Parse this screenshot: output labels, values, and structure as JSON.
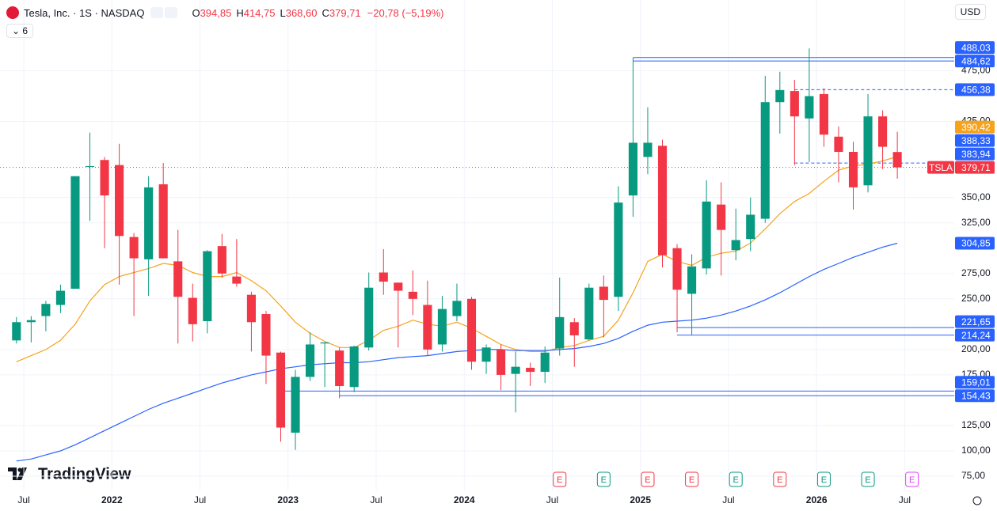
{
  "header": {
    "symbol": "Tesla, Inc. · 1S · NASDAQ",
    "currency": "USD",
    "indicator_count": "6",
    "ohlc": [
      {
        "key": "O",
        "label": "394,85"
      },
      {
        "key": "H",
        "label": "414,75"
      },
      {
        "key": "L",
        "label": "368,60"
      },
      {
        "key": "C",
        "label": "379,71"
      }
    ],
    "change": {
      "value": -20.78,
      "label": "−20,78"
    },
    "change_pct": {
      "value": -5.19,
      "label": "(−5,19%)"
    }
  },
  "logo": "TradingView",
  "chart_data": {
    "type": "candlestick",
    "symbol": "TSLA",
    "last_label": "379,71",
    "up_color": "#089981",
    "down_color": "#f23645",
    "x": [
      "2021-06",
      "2021-07",
      "2021-08",
      "2021-09",
      "2021-10",
      "2021-11",
      "2021-12",
      "2022-01",
      "2022-02",
      "2022-03",
      "2022-04",
      "2022-05",
      "2022-06",
      "2022-07",
      "2022-08",
      "2022-09",
      "2022-10",
      "2022-11",
      "2022-12",
      "2023-01",
      "2023-02",
      "2023-03",
      "2023-04",
      "2023-05",
      "2023-06",
      "2023-07",
      "2023-08",
      "2023-09",
      "2023-10",
      "2023-11",
      "2023-12",
      "2024-01",
      "2024-02",
      "2024-03",
      "2024-04",
      "2024-05",
      "2024-06",
      "2024-07",
      "2024-08",
      "2024-09",
      "2024-10",
      "2024-11",
      "2024-12",
      "2025-01",
      "2025-02",
      "2025-03",
      "2025-04",
      "2025-05",
      "2025-06",
      "2025-07",
      "2025-08",
      "2025-09",
      "2025-10",
      "2025-11",
      "2025-12",
      "2026-01",
      "2026-02",
      "2026-03",
      "2026-04",
      "2026-05",
      "2026-06"
    ],
    "open": [
      209,
      227,
      233,
      244,
      260,
      381,
      387,
      382,
      311,
      289,
      363,
      287,
      251,
      228,
      302,
      272,
      254,
      235,
      197,
      118,
      173,
      206,
      199,
      163,
      202,
      276,
      266,
      257,
      244,
      205,
      233,
      250,
      188,
      200,
      176,
      182,
      178,
      201,
      227,
      210,
      262,
      252,
      352,
      390,
      401,
      300,
      255,
      280,
      343,
      298,
      309,
      329,
      444,
      455,
      428,
      452,
      410,
      395,
      362,
      430,
      394.85
    ],
    "high": [
      232,
      233,
      248,
      264,
      371,
      414,
      390,
      403,
      315,
      371,
      384,
      318,
      265,
      298,
      314,
      309,
      257,
      238,
      198,
      180,
      217,
      207,
      202,
      204,
      276,
      299,
      266,
      278,
      268,
      253,
      265,
      252,
      205,
      205,
      198,
      187,
      203,
      271,
      231,
      265,
      273,
      361,
      488,
      439,
      407,
      304,
      294,
      367,
      365,
      339,
      350,
      470,
      474,
      466,
      497,
      458,
      420,
      405,
      452,
      436,
      414.75
    ],
    "low": [
      206,
      207,
      218,
      236,
      260,
      327,
      300,
      264,
      233,
      253,
      290,
      206,
      208,
      216,
      271,
      262,
      198,
      166,
      109,
      101,
      169,
      163,
      152,
      158,
      199,
      254,
      202,
      234,
      194,
      198,
      228,
      180,
      176,
      160,
      138,
      164,
      167,
      194,
      183,
      209,
      212,
      238,
      331,
      373,
      281,
      217,
      214,
      274,
      273,
      288,
      297,
      325,
      413,
      382,
      385,
      400,
      365,
      338,
      355,
      378,
      368.6
    ],
    "close": [
      227,
      229,
      245,
      258,
      371,
      381,
      352,
      312,
      290,
      360,
      290,
      252,
      225,
      297,
      275,
      265,
      227,
      194,
      123,
      173,
      205,
      207,
      164,
      203,
      261,
      267,
      258,
      250,
      200,
      240,
      248,
      188,
      202,
      175,
      183,
      178,
      197,
      232,
      214,
      261,
      249,
      345,
      404,
      404,
      293,
      259,
      282,
      346,
      318,
      308,
      333,
      444,
      456,
      430,
      450,
      412,
      395,
      360,
      430,
      400,
      379.71
    ],
    "lines": [
      {
        "color": "#f7a21b",
        "last_label": "390,42",
        "values": [
          188,
          194,
          200,
          209,
          225,
          248,
          264,
          272,
          276,
          280,
          285,
          283,
          276,
          272,
          272,
          276,
          268,
          258,
          243,
          227,
          216,
          208,
          202,
          202,
          209,
          219,
          223,
          229,
          225,
          223,
          227,
          221,
          213,
          205,
          200,
          198,
          198,
          202,
          204,
          209,
          213,
          229,
          256,
          287,
          294,
          287,
          283,
          291,
          295,
          297,
          305,
          319,
          334,
          346,
          354,
          366,
          377,
          381,
          383,
          386,
          390.42
        ]
      },
      {
        "color": "#2962ff",
        "last_label": "304,85",
        "values": [
          90,
          92,
          96,
          100,
          106,
          113,
          120,
          127,
          134,
          141,
          147,
          152,
          157,
          162,
          167,
          171,
          175,
          178,
          181,
          183,
          185,
          186,
          187,
          187,
          188,
          190,
          192,
          193,
          194,
          196,
          198,
          199,
          200,
          200,
          199,
          199,
          199,
          200,
          201,
          203,
          206,
          211,
          218,
          224,
          227,
          228,
          229,
          231,
          234,
          238,
          243,
          249,
          256,
          264,
          272,
          279,
          285,
          291,
          296,
          301,
          304.85
        ]
      }
    ],
    "levels": [
      {
        "value": 488.03,
        "label": "488,03",
        "from": "2024-12",
        "dashed": false
      },
      {
        "value": 484.62,
        "label": "484,62",
        "from": "2024-12",
        "dashed": false
      },
      {
        "value": 456.38,
        "label": "456,38",
        "from": "2025-11",
        "dashed": true
      },
      {
        "value": 388.33,
        "label": "388,33"
      },
      {
        "value": 383.94,
        "label": "383,94",
        "from": "2025-11",
        "dashed": true
      },
      {
        "value": 221.65,
        "label": "221,65",
        "from": "2025-03",
        "dashed": false
      },
      {
        "value": 214.24,
        "label": "214,24",
        "from": "2025-03",
        "dashed": false
      },
      {
        "value": 159.01,
        "label": "159,01",
        "from": "2022-12",
        "dashed": false
      },
      {
        "value": 154.43,
        "label": "154,43",
        "from": "2023-04",
        "dashed": false
      }
    ],
    "level_color": "#2962ff",
    "events": [
      {
        "x": "2024-07",
        "label": "E",
        "color": "#f23645"
      },
      {
        "x": "2024-10",
        "label": "E",
        "color": "#089981"
      },
      {
        "x": "2025-01",
        "label": "E",
        "color": "#f23645"
      },
      {
        "x": "2025-04",
        "label": "E",
        "color": "#f23645"
      },
      {
        "x": "2025-07",
        "label": "E",
        "color": "#089981"
      },
      {
        "x": "2025-10",
        "label": "E",
        "color": "#f23645"
      },
      {
        "x": "2026-01",
        "label": "E",
        "color": "#089981"
      },
      {
        "x": "2026-04",
        "label": "E",
        "color": "#089981"
      },
      {
        "x": "2026-07",
        "label": "E",
        "color": "#e040fb"
      }
    ],
    "xlim": [
      "2021-05",
      "2026-10"
    ],
    "xticks": [
      {
        "value": "2021-07",
        "label": "Jul"
      },
      {
        "value": "2022-01",
        "label": "2022"
      },
      {
        "value": "2022-07",
        "label": "Jul"
      },
      {
        "value": "2023-01",
        "label": "2023"
      },
      {
        "value": "2023-07",
        "label": "Jul"
      },
      {
        "value": "2024-01",
        "label": "2024"
      },
      {
        "value": "2024-07",
        "label": "Jul"
      },
      {
        "value": "2025-01",
        "label": "2025"
      },
      {
        "value": "2025-07",
        "label": "Jul"
      },
      {
        "value": "2026-01",
        "label": "2026"
      },
      {
        "value": "2026-07",
        "label": "Jul"
      }
    ],
    "ylim": [
      61,
      498
    ],
    "yticks": [
      {
        "value": 75,
        "label": "75,00"
      },
      {
        "value": 100,
        "label": "100,00"
      },
      {
        "value": 125,
        "label": "125,00"
      },
      {
        "value": 175,
        "label": "175,00"
      },
      {
        "value": 200,
        "label": "200,00"
      },
      {
        "value": 250,
        "label": "250,00"
      },
      {
        "value": 275,
        "label": "275,00"
      },
      {
        "value": 325,
        "label": "325,00"
      },
      {
        "value": 350,
        "label": "350,00"
      },
      {
        "value": 425,
        "label": "425,00"
      },
      {
        "value": 475,
        "label": "475,00"
      }
    ],
    "grid": true
  }
}
